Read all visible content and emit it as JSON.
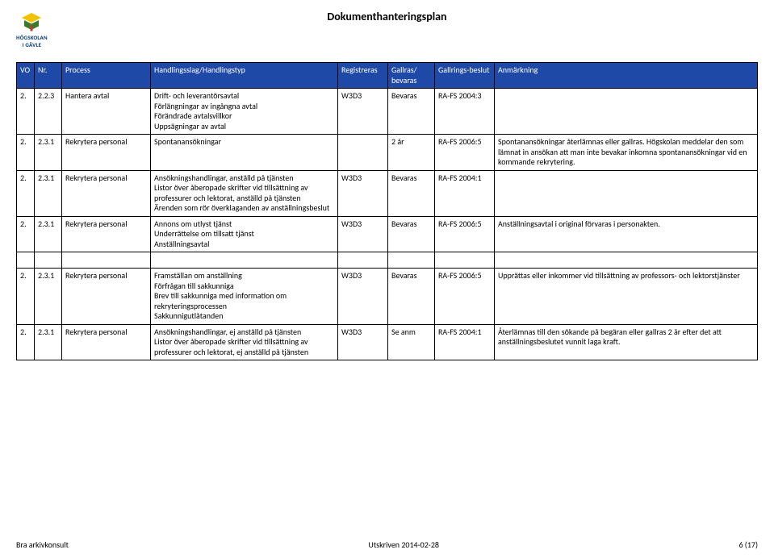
{
  "doc_title": "Dokumenthanteringsplan",
  "logo": {
    "institution": "HÖGSKOLAN",
    "city": "I GÄVLE"
  },
  "headers": {
    "vo": "VO",
    "nr": "Nr.",
    "process": "Process",
    "hand": "Handlingsslag/Handlingstyp",
    "reg": "Registreras",
    "gallras": "Gallras/ bevaras",
    "beslut": "Gallrings-beslut",
    "anm": "Anmärkning"
  },
  "colors": {
    "header_bg": "#1f49a6",
    "header_fg": "#ffffff",
    "border": "#000000",
    "logo_blue": "#003a78",
    "logo_yellow": "#f2c200",
    "logo_green": "#3a7a2b",
    "logo_red": "#c43a2e"
  },
  "rows": [
    {
      "vo": "2.",
      "nr": "2.2.3",
      "process": "Hantera avtal",
      "hand": "Drift- och leverantörsavtal\nFörlängningar av ingångna avtal\nFörändrade avtalsvillkor\nUppsägningar av avtal",
      "reg": "W3D3",
      "gallras": "Bevaras",
      "beslut": "RA-FS 2004:3",
      "anm": ""
    },
    {
      "vo": "2.",
      "nr": "2.3.1",
      "process": "Rekrytera personal",
      "hand": "Spontanansökningar",
      "reg": "",
      "gallras": "2 år",
      "beslut": "RA-FS 2006:5",
      "anm": "Spontanansökningar återlämnas eller gallras. Högskolan meddelar den som lämnat in ansökan att man inte bevakar inkomna spontanansökningar vid en kommande rekrytering."
    },
    {
      "vo": "2.",
      "nr": "2.3.1",
      "process": "Rekrytera personal",
      "hand": "Ansökningshandlingar, anställd på tjänsten\nListor över åberopade skrifter vid tillsättning av professurer och lektorat, anställd på tjänsten\nÄrenden som rör överklaganden av anställningsbeslut",
      "reg": "W3D3",
      "gallras": "Bevaras",
      "beslut": "RA-FS 2004:1",
      "anm": ""
    },
    {
      "vo": "2.",
      "nr": "2.3.1",
      "process": "Rekrytera personal",
      "hand": "Annons om utlyst tjänst\nUnderrättelse om tillsatt tjänst\nAnställningsavtal",
      "reg": "W3D3",
      "gallras": "Bevaras",
      "beslut": "RA-FS 2006:5",
      "anm": "Anställningsavtal i original förvaras i personakten."
    },
    {
      "vo": "2.",
      "nr": "2.3.1",
      "process": "Rekrytera personal",
      "hand": "Framställan om anställning\nFörfrågan till sakkunniga\nBrev till sakkunniga med information om rekryteringsprocessen\nSakkunnigutlåtanden",
      "reg": "W3D3",
      "gallras": "Bevaras",
      "beslut": "RA-FS 2006:5",
      "anm": "Upprättas eller inkommer vid tillsättning av professors- och lektorstjänster"
    },
    {
      "vo": "2.",
      "nr": "2.3.1",
      "process": "Rekrytera personal",
      "hand": "Ansökningshandlingar, ej anställd på tjänsten\nListor över åberopade skrifter vid tillsättning av professurer och lektorat, ej anställd på tjänsten",
      "reg": "W3D3",
      "gallras": "Se anm",
      "beslut": "RA-FS 2004:1",
      "anm": "Återlämnas till den sökande på begäran eller gallras 2 år efter det att anställningsbeslutet vunnit laga kraft."
    }
  ],
  "footer": {
    "left": "Bra arkivkonsult",
    "center": "Utskriven 2014-02-28",
    "right": "6 (17)"
  }
}
